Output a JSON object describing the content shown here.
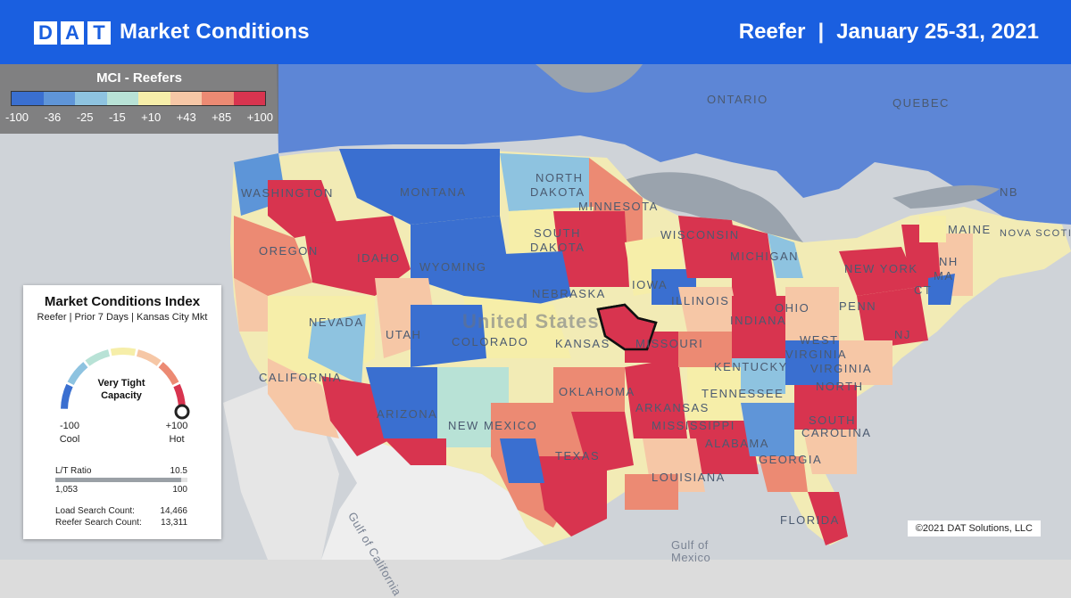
{
  "header": {
    "logo_letters": [
      "D",
      "A",
      "T"
    ],
    "title": "Market Conditions",
    "equipment": "Reefer",
    "separator": "|",
    "date_range": "January 25-31, 2021"
  },
  "mci_legend": {
    "title": "MCI - Reefers",
    "ticks": [
      "-100",
      "-36",
      "-25",
      "-15",
      "+10",
      "+43",
      "+85",
      "+100"
    ],
    "colors": [
      "#3a6fd0",
      "#5f95d8",
      "#8ec3e0",
      "#b8e2d6",
      "#f6eea9",
      "#f6c7a6",
      "#ec8a73",
      "#d8344f"
    ]
  },
  "index_card": {
    "title": "Market Conditions Index",
    "subtitle": "Reefer | Prior 7 Days | Kansas City Mkt",
    "gauge_status_line1": "Very Tight",
    "gauge_status_line2": "Capacity",
    "gauge_level": 1.0,
    "min_value": "-100",
    "min_label": "Cool",
    "max_value": "+100",
    "max_label": "Hot",
    "lt_ratio_label": "L/T Ratio",
    "lt_ratio_value": "10.5",
    "lt_fill": 0.95,
    "lt_left": "1,053",
    "lt_right": "100",
    "load_search_label": "Load Search Count:",
    "load_search_value": "14,466",
    "reefer_search_label": "Reefer Search Count:",
    "reefer_search_value": "13,311"
  },
  "map_labels": {
    "ontario": "ONTARIO",
    "quebec": "QUEBEC",
    "nb": "NB",
    "nova_scotia": "NOVA SCOTIA",
    "washington": "WASHINGTON",
    "montana": "MONTANA",
    "north_dakota_1": "NORTH",
    "north_dakota_2": "DAKOTA",
    "minnesota": "MINNESOTA",
    "oregon": "OREGON",
    "idaho": "IDAHO",
    "wyoming": "WYOMING",
    "south_dakota_1": "SOUTH",
    "south_dakota_2": "DAKOTA",
    "wisconsin": "WISCONSIN",
    "michigan": "MICHIGAN",
    "maine": "MAINE",
    "nebraska": "NEBRASKA",
    "iowa": "IOWA",
    "new_york": "NEW YORK",
    "nh": "NH",
    "ma": "MA",
    "ct": "CT",
    "nevada": "NEVADA",
    "utah": "UTAH",
    "colorado": "COLORADO",
    "united_states": "United States",
    "kansas": "KANSAS",
    "missouri": "MISSOURI",
    "illinois": "ILLINOIS",
    "indiana": "INDIANA",
    "ohio": "OHIO",
    "penn": "PENN",
    "nj": "NJ",
    "california": "CALIFORNIA",
    "west_virginia_1": "WEST",
    "west_virginia_2": "VIRGINIA",
    "virginia": "VIRGINIA",
    "kentucky": "KENTUCKY",
    "oklahoma": "OKLAHOMA",
    "tennessee": "TENNESSEE",
    "north_carolina": "NORTH",
    "arizona": "ARIZONA",
    "new_mexico": "NEW MEXICO",
    "arkansas": "ARKANSAS",
    "south_carolina_1": "SOUTH",
    "south_carolina_2": "CAROLINA",
    "mississippi": "MISSISSIPPI",
    "alabama": "ALABAMA",
    "georgia": "GEORGIA",
    "texas": "TEXAS",
    "louisiana": "LOUISIANA",
    "florida": "FLORIDA",
    "gulf_of_california": "Gulf of California",
    "gulf_of_mexico_1": "Gulf of",
    "gulf_of_mexico_2": "Mexico"
  },
  "copyright": "©2021 DAT Solutions, LLC"
}
